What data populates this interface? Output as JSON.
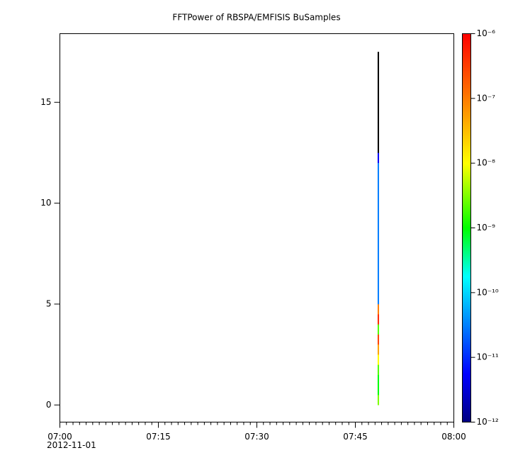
{
  "chart_data": {
    "type": "spectrogram",
    "title": "FFTPower of RBSPA/EMFISIS  BuSamples",
    "xlim": [
      "07:00",
      "08:00"
    ],
    "xticks": [
      "07:00",
      "07:15",
      "07:30",
      "07:45",
      "08:00"
    ],
    "date": "2012-11-01",
    "ylim": [
      -0.85,
      18.4
    ],
    "yticks": [
      0,
      5,
      10,
      15
    ],
    "x": [
      "07:48"
    ],
    "ybins": [
      0,
      0.5,
      1,
      1.5,
      2,
      2.5,
      3,
      3.5,
      4,
      4.5,
      5,
      5.5,
      6,
      6.5,
      7,
      7.5,
      8,
      8.5,
      9,
      9.5,
      10,
      10.5,
      11,
      11.5,
      12,
      12.5,
      13,
      13.5,
      14,
      14.5,
      15,
      15.5,
      16,
      16.5,
      17,
      17.5
    ],
    "z": [
      [
        3e-09,
        1e-09,
        1e-09,
        2e-09,
        1e-08,
        5e-08,
        3e-07,
        2e-09,
        5e-07,
        1e-07,
        3e-11,
        3e-11,
        3e-11,
        3e-11,
        3e-11,
        3e-11,
        3e-11,
        3e-11,
        3e-11,
        3e-11,
        3e-11,
        3e-11,
        3e-11,
        3e-11,
        5e-12,
        1e-13,
        1e-13,
        1e-13,
        1e-13,
        1e-13,
        1e-13,
        1e-13,
        1e-13,
        1e-13,
        1e-13
      ]
    ],
    "zlog": true,
    "zlim": [
      1e-12,
      1e-06
    ],
    "zticks": [
      {
        "value": 1e-06,
        "label": "10⁻⁶"
      },
      {
        "value": 1e-07,
        "label": "10⁻⁷"
      },
      {
        "value": 1e-08,
        "label": "10⁻⁸"
      },
      {
        "value": 1e-09,
        "label": "10⁻⁹"
      },
      {
        "value": 1e-10,
        "label": "10⁻¹⁰"
      },
      {
        "value": 1e-11,
        "label": "10⁻¹¹"
      },
      {
        "value": 1e-12,
        "label": "10⁻¹²"
      }
    ],
    "below_range_color": "#000000"
  }
}
